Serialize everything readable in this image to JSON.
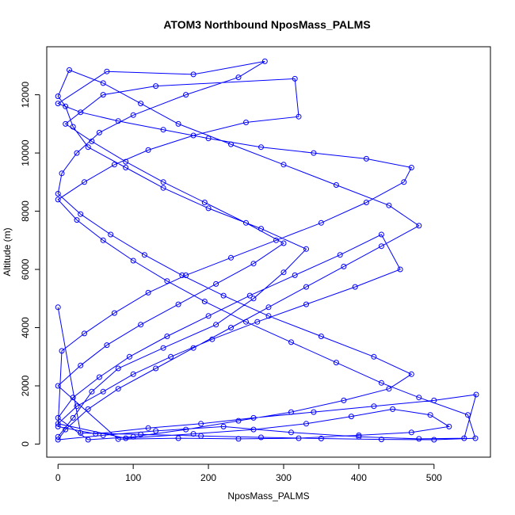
{
  "chart_data": {
    "type": "line",
    "title": "ATOM3 Northbound NposMass_PALMS",
    "xlabel": "NposMass_PALMS",
    "ylabel": "Altitude (m)",
    "xlim": [
      -15,
      575
    ],
    "ylim": [
      -450,
      13650
    ],
    "x_ticks": [
      0,
      100,
      200,
      300,
      400,
      500
    ],
    "y_ticks": [
      0,
      2000,
      4000,
      6000,
      8000,
      10000,
      12000
    ],
    "grid": false,
    "legend": "none",
    "markers": "open-circle",
    "series": [
      {
        "points": [
          [
            0,
            250
          ],
          [
            20,
            900
          ],
          [
            45,
            1800
          ],
          [
            80,
            2600
          ],
          [
            140,
            3300
          ],
          [
            210,
            4100
          ],
          [
            260,
            5000
          ],
          [
            300,
            5900
          ],
          [
            330,
            6700
          ],
          [
            270,
            7400
          ],
          [
            200,
            8100
          ],
          [
            140,
            8800
          ],
          [
            90,
            9500
          ],
          [
            40,
            10200
          ],
          [
            20,
            10900
          ],
          [
            10,
            11600
          ],
          [
            0,
            11950
          ],
          [
            15,
            12850
          ],
          [
            60,
            12400
          ],
          [
            110,
            11700
          ],
          [
            160,
            11000
          ],
          [
            230,
            10300
          ],
          [
            300,
            9600
          ],
          [
            370,
            8900
          ],
          [
            440,
            8200
          ],
          [
            480,
            7500
          ],
          [
            430,
            6800
          ],
          [
            380,
            6100
          ],
          [
            330,
            5400
          ],
          [
            280,
            4700
          ],
          [
            230,
            4000
          ],
          [
            180,
            3300
          ],
          [
            130,
            2600
          ],
          [
            80,
            1900
          ],
          [
            40,
            1200
          ],
          [
            10,
            500
          ],
          [
            0,
            150
          ],
          [
            60,
            300
          ],
          [
            130,
            450
          ],
          [
            220,
            600
          ],
          [
            310,
            400
          ],
          [
            400,
            250
          ],
          [
            480,
            180
          ],
          [
            540,
            200
          ],
          [
            556,
            1700
          ],
          [
            500,
            1500
          ],
          [
            420,
            1300
          ],
          [
            340,
            1100
          ],
          [
            260,
            900
          ],
          [
            190,
            700
          ],
          [
            120,
            550
          ],
          [
            50,
            350
          ],
          [
            0,
            600
          ],
          [
            5,
            3200
          ],
          [
            35,
            3800
          ],
          [
            75,
            4500
          ],
          [
            120,
            5200
          ],
          [
            170,
            5800
          ],
          [
            230,
            6400
          ],
          [
            290,
            7000
          ],
          [
            350,
            7600
          ],
          [
            410,
            8300
          ],
          [
            460,
            9000
          ],
          [
            470,
            9500
          ],
          [
            410,
            9800
          ],
          [
            340,
            10000
          ],
          [
            270,
            10200
          ],
          [
            200,
            10500
          ],
          [
            140,
            10800
          ],
          [
            80,
            11100
          ],
          [
            30,
            11400
          ],
          [
            0,
            11700
          ],
          [
            65,
            12800
          ],
          [
            180,
            12700
          ],
          [
            275,
            13150
          ],
          [
            240,
            12600
          ],
          [
            170,
            12000
          ],
          [
            100,
            11300
          ],
          [
            55,
            10700
          ],
          [
            25,
            10000
          ],
          [
            5,
            9300
          ],
          [
            0,
            8600
          ],
          [
            30,
            7900
          ],
          [
            70,
            7200
          ],
          [
            115,
            6500
          ],
          [
            165,
            5800
          ],
          [
            220,
            5100
          ],
          [
            280,
            4400
          ],
          [
            350,
            3700
          ],
          [
            420,
            3000
          ],
          [
            470,
            2400
          ],
          [
            440,
            1900
          ],
          [
            380,
            1500
          ],
          [
            310,
            1100
          ],
          [
            240,
            800
          ],
          [
            170,
            500
          ],
          [
            100,
            250
          ],
          [
            40,
            150
          ],
          [
            0,
            900
          ],
          [
            20,
            1600
          ],
          [
            55,
            2300
          ],
          [
            95,
            3000
          ],
          [
            145,
            3700
          ],
          [
            200,
            4400
          ],
          [
            255,
            5100
          ],
          [
            315,
            5800
          ],
          [
            375,
            6500
          ],
          [
            430,
            7200
          ],
          [
            455,
            6000
          ],
          [
            395,
            5400
          ],
          [
            330,
            4800
          ],
          [
            265,
            4200
          ],
          [
            205,
            3600
          ],
          [
            150,
            3000
          ],
          [
            100,
            2400
          ],
          [
            60,
            1800
          ],
          [
            25,
            1300
          ],
          [
            0,
            700
          ],
          [
            90,
            200
          ],
          [
            180,
            350
          ],
          [
            260,
            500
          ],
          [
            330,
            700
          ],
          [
            390,
            950
          ],
          [
            445,
            1200
          ],
          [
            495,
            1000
          ],
          [
            520,
            600
          ],
          [
            470,
            400
          ],
          [
            400,
            300
          ],
          [
            320,
            200
          ],
          [
            240,
            180
          ],
          [
            160,
            200
          ],
          [
            80,
            170
          ],
          [
            0,
            2000
          ],
          [
            30,
            2700
          ],
          [
            65,
            3400
          ],
          [
            110,
            4100
          ],
          [
            160,
            4800
          ],
          [
            210,
            5500
          ],
          [
            260,
            6200
          ],
          [
            300,
            6900
          ],
          [
            250,
            7600
          ],
          [
            195,
            8300
          ],
          [
            140,
            9000
          ],
          [
            90,
            9700
          ],
          [
            45,
            10400
          ],
          [
            10,
            11000
          ],
          [
            60,
            12000
          ],
          [
            130,
            12300
          ],
          [
            315,
            12550
          ],
          [
            320,
            11250
          ],
          [
            250,
            11050
          ],
          [
            180,
            10600
          ],
          [
            120,
            10100
          ],
          [
            75,
            9600
          ],
          [
            35,
            9000
          ],
          [
            0,
            8400
          ],
          [
            25,
            7700
          ],
          [
            60,
            7000
          ],
          [
            100,
            6300
          ],
          [
            145,
            5600
          ],
          [
            195,
            4900
          ],
          [
            250,
            4200
          ],
          [
            310,
            3500
          ],
          [
            370,
            2800
          ],
          [
            430,
            2100
          ],
          [
            480,
            1600
          ],
          [
            545,
            1000
          ],
          [
            555,
            200
          ],
          [
            500,
            150
          ],
          [
            430,
            160
          ],
          [
            350,
            190
          ],
          [
            270,
            230
          ],
          [
            190,
            280
          ],
          [
            110,
            330
          ],
          [
            30,
            380
          ],
          [
            0,
            4700
          ]
        ]
      }
    ]
  }
}
